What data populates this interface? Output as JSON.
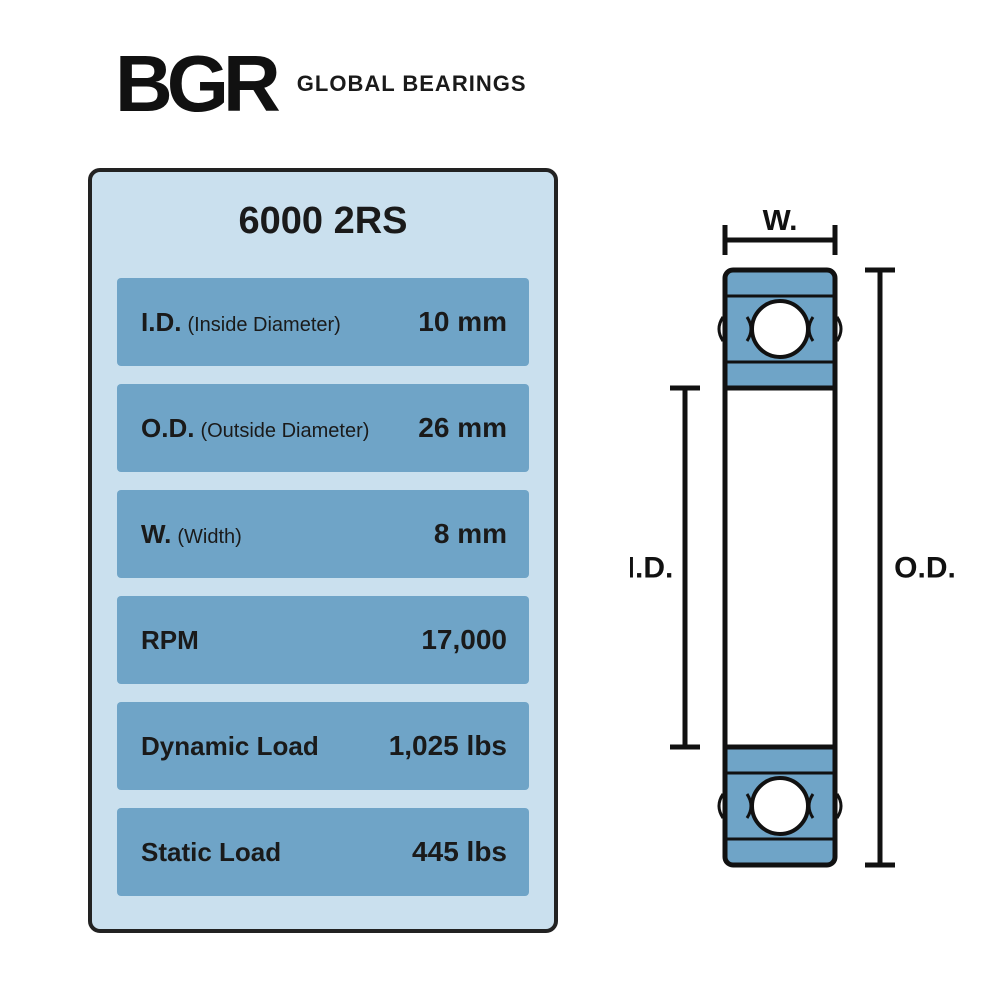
{
  "brand": {
    "logo_text": "BGR",
    "company_name": "GLOBAL BEARINGS"
  },
  "panel": {
    "title": "6000 2RS",
    "background_color": "#cae0ee",
    "row_color": "#6fa4c7",
    "border_color": "#222222",
    "text_color": "#1a1a1a",
    "specs": [
      {
        "abbr": "I.D.",
        "full": "(Inside Diameter)",
        "value": "10 mm"
      },
      {
        "abbr": "O.D.",
        "full": "(Outside Diameter)",
        "value": "26 mm"
      },
      {
        "abbr": "W.",
        "full": "(Width)",
        "value": "8 mm"
      },
      {
        "abbr": "RPM",
        "full": "",
        "value": "17,000"
      },
      {
        "abbr": "Dynamic Load",
        "full": "",
        "value": "1,025 lbs"
      },
      {
        "abbr": "Static Load",
        "full": "",
        "value": "445 lbs"
      }
    ]
  },
  "diagram": {
    "labels": {
      "width": "W.",
      "id": "I.D.",
      "od": "O.D."
    },
    "colors": {
      "fill": "#6fa4c7",
      "stroke": "#111111",
      "ball": "#ffffff",
      "bg": "#ffffff"
    }
  }
}
